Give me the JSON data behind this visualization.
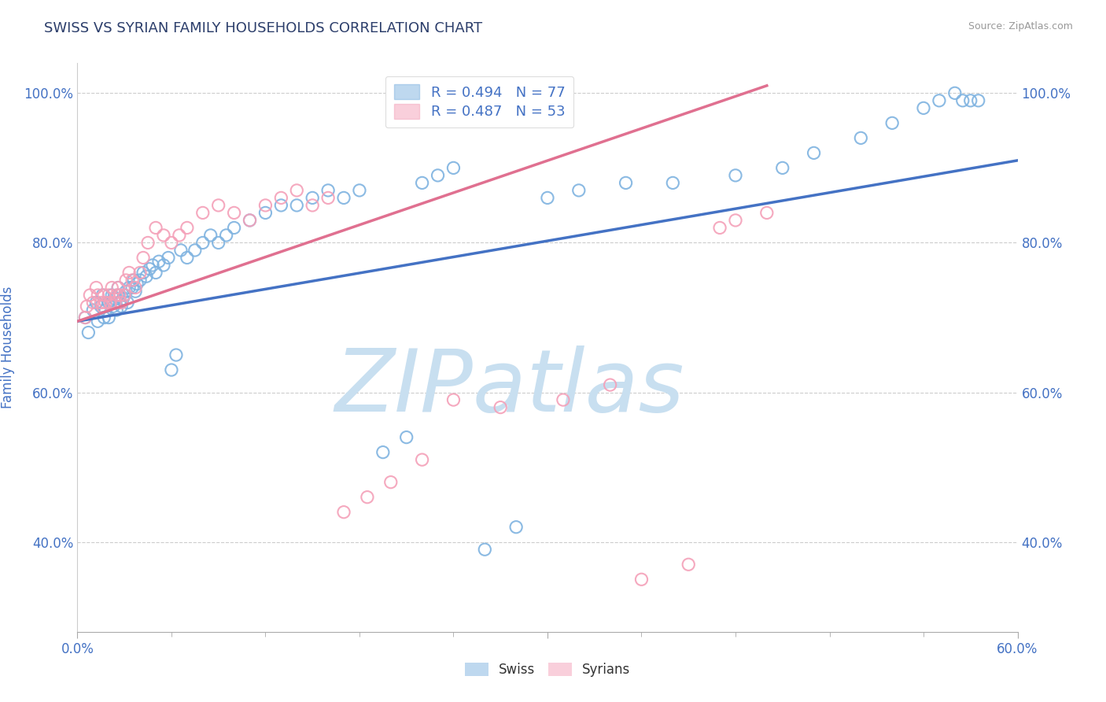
{
  "title": "SWISS VS SYRIAN FAMILY HOUSEHOLDS CORRELATION CHART",
  "source": "Source: ZipAtlas.com",
  "xlabel": "",
  "ylabel": "Family Households",
  "xlim": [
    0.0,
    0.6
  ],
  "ylim": [
    0.28,
    1.04
  ],
  "ytick_values": [
    0.4,
    0.6,
    0.8,
    1.0
  ],
  "ytick_labels": [
    "40.0%",
    "60.0%",
    "80.0%",
    "100.0%"
  ],
  "swiss_color": "#7fb3e0",
  "syrian_color": "#f4a0b8",
  "swiss_line_color": "#4472c4",
  "syrian_line_color": "#e07090",
  "swiss_R": 0.494,
  "swiss_N": 77,
  "syrian_R": 0.487,
  "syrian_N": 53,
  "legend_swiss_label": "R = 0.494   N = 77",
  "legend_syrian_label": "R = 0.487   N = 53",
  "swiss_label": "Swiss",
  "syrians_label": "Syrians",
  "watermark": "ZIPatlas",
  "watermark_color": "#c8dff0",
  "grid_color": "#cccccc",
  "grid_linestyle": "--",
  "background_color": "#ffffff",
  "title_color": "#2c3e6b",
  "axis_label_color": "#4472c4",
  "tick_label_color": "#4472c4",
  "swiss_line_x0": 0.0,
  "swiss_line_y0": 0.695,
  "swiss_line_x1": 0.6,
  "swiss_line_y1": 0.91,
  "syrian_line_x0": 0.0,
  "syrian_line_y0": 0.695,
  "syrian_line_x1": 0.44,
  "syrian_line_y1": 1.01,
  "swiss_scatter_x": [
    0.005,
    0.007,
    0.01,
    0.012,
    0.013,
    0.015,
    0.016,
    0.017,
    0.018,
    0.02,
    0.02,
    0.022,
    0.023,
    0.024,
    0.025,
    0.026,
    0.026,
    0.027,
    0.028,
    0.029,
    0.03,
    0.031,
    0.032,
    0.033,
    0.035,
    0.036,
    0.037,
    0.038,
    0.04,
    0.042,
    0.044,
    0.046,
    0.048,
    0.05,
    0.052,
    0.055,
    0.058,
    0.06,
    0.063,
    0.066,
    0.07,
    0.075,
    0.08,
    0.085,
    0.09,
    0.095,
    0.1,
    0.11,
    0.12,
    0.13,
    0.14,
    0.15,
    0.16,
    0.17,
    0.18,
    0.195,
    0.21,
    0.22,
    0.23,
    0.24,
    0.26,
    0.28,
    0.3,
    0.32,
    0.35,
    0.38,
    0.42,
    0.45,
    0.47,
    0.5,
    0.52,
    0.54,
    0.55,
    0.56,
    0.565,
    0.57,
    0.575
  ],
  "swiss_scatter_y": [
    0.7,
    0.68,
    0.71,
    0.72,
    0.695,
    0.715,
    0.73,
    0.7,
    0.71,
    0.72,
    0.7,
    0.73,
    0.715,
    0.725,
    0.71,
    0.73,
    0.74,
    0.72,
    0.715,
    0.725,
    0.73,
    0.735,
    0.72,
    0.74,
    0.74,
    0.75,
    0.735,
    0.745,
    0.75,
    0.76,
    0.755,
    0.765,
    0.77,
    0.76,
    0.775,
    0.77,
    0.78,
    0.63,
    0.65,
    0.79,
    0.78,
    0.79,
    0.8,
    0.81,
    0.8,
    0.81,
    0.82,
    0.83,
    0.84,
    0.85,
    0.85,
    0.86,
    0.87,
    0.86,
    0.87,
    0.52,
    0.54,
    0.88,
    0.89,
    0.9,
    0.39,
    0.42,
    0.86,
    0.87,
    0.88,
    0.88,
    0.89,
    0.9,
    0.92,
    0.94,
    0.96,
    0.98,
    0.99,
    1.0,
    0.99,
    0.99,
    0.99
  ],
  "syrian_scatter_x": [
    0.005,
    0.006,
    0.008,
    0.01,
    0.012,
    0.013,
    0.015,
    0.016,
    0.017,
    0.018,
    0.02,
    0.021,
    0.022,
    0.024,
    0.025,
    0.026,
    0.027,
    0.028,
    0.03,
    0.031,
    0.033,
    0.035,
    0.037,
    0.04,
    0.042,
    0.045,
    0.05,
    0.055,
    0.06,
    0.065,
    0.07,
    0.08,
    0.09,
    0.1,
    0.11,
    0.12,
    0.13,
    0.14,
    0.15,
    0.16,
    0.17,
    0.185,
    0.2,
    0.22,
    0.24,
    0.27,
    0.31,
    0.34,
    0.36,
    0.39,
    0.41,
    0.42,
    0.44
  ],
  "syrian_scatter_y": [
    0.7,
    0.715,
    0.73,
    0.72,
    0.74,
    0.73,
    0.72,
    0.715,
    0.73,
    0.72,
    0.73,
    0.72,
    0.74,
    0.72,
    0.73,
    0.74,
    0.73,
    0.72,
    0.73,
    0.75,
    0.76,
    0.75,
    0.74,
    0.76,
    0.78,
    0.8,
    0.82,
    0.81,
    0.8,
    0.81,
    0.82,
    0.84,
    0.85,
    0.84,
    0.83,
    0.85,
    0.86,
    0.87,
    0.85,
    0.86,
    0.44,
    0.46,
    0.48,
    0.51,
    0.59,
    0.58,
    0.59,
    0.61,
    0.35,
    0.37,
    0.82,
    0.83,
    0.84
  ]
}
